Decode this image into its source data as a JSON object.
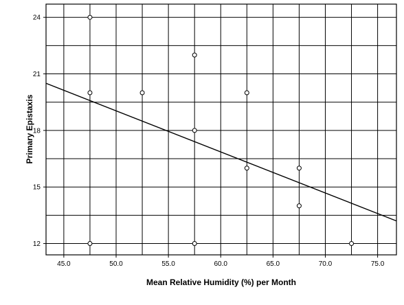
{
  "chart_data": {
    "type": "scatter",
    "title": "",
    "xlabel": "Mean Relative Humidity (%) per Month",
    "ylabel": "Primary Epistaxis",
    "xlim": [
      43.3,
      76.8
    ],
    "ylim": [
      11.4,
      24.7
    ],
    "x_ticks": [
      "45.0",
      "50.0",
      "55.0",
      "60.0",
      "65.0",
      "70.0",
      "75.0"
    ],
    "y_ticks": [
      "12",
      "15",
      "18",
      "21",
      "24"
    ],
    "x_tick_values": [
      45,
      50,
      55,
      60,
      65,
      70,
      75
    ],
    "y_tick_values": [
      12,
      15,
      18,
      21,
      24
    ],
    "x_gridlines": [
      45,
      47.5,
      50,
      52.5,
      55,
      57.5,
      60,
      62.5,
      65,
      67.5,
      70,
      72.5,
      75
    ],
    "y_gridlines": [
      12,
      13.5,
      15,
      16.5,
      18,
      19.5,
      21,
      22.5,
      24
    ],
    "grid": true,
    "points": [
      {
        "x": 47.5,
        "y": 24
      },
      {
        "x": 47.5,
        "y": 20
      },
      {
        "x": 47.5,
        "y": 12
      },
      {
        "x": 52.5,
        "y": 20
      },
      {
        "x": 57.5,
        "y": 22
      },
      {
        "x": 57.5,
        "y": 18
      },
      {
        "x": 57.5,
        "y": 12
      },
      {
        "x": 62.5,
        "y": 20
      },
      {
        "x": 62.5,
        "y": 16
      },
      {
        "x": 67.5,
        "y": 16
      },
      {
        "x": 67.5,
        "y": 14
      },
      {
        "x": 72.5,
        "y": 12
      }
    ],
    "fit_line": {
      "x": [
        43.3,
        76.8
      ],
      "y": [
        20.5,
        13.2
      ]
    },
    "colors": {
      "plot_background": "#ffffff",
      "axis": "#000000",
      "grid": "#000000",
      "marker": "#000000",
      "fit_line": "#000000"
    }
  }
}
